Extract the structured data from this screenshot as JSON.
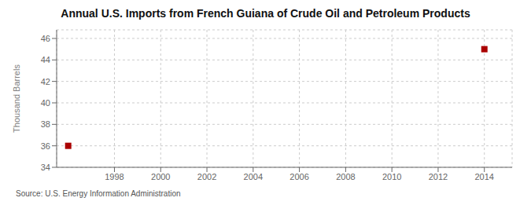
{
  "chart_data": {
    "type": "scatter",
    "title": "Annual U.S. Imports from French Guiana of Crude Oil and Petroleum Products",
    "y_label": "Thousand Barrels",
    "annotations": [
      "Source: U.S. Energy Information Administration"
    ],
    "x": [
      1996,
      2014
    ],
    "values": [
      36,
      45
    ],
    "color": "#aa0000",
    "marker": "square",
    "xlim": [
      1995.5,
      2015.2
    ],
    "ylim": [
      34,
      46.8
    ],
    "xticks": [
      1998,
      2000,
      2002,
      2004,
      2006,
      2008,
      2010,
      2012,
      2014
    ],
    "yticks": [
      34,
      36,
      38,
      40,
      42,
      44,
      46
    ],
    "grid": true
  }
}
